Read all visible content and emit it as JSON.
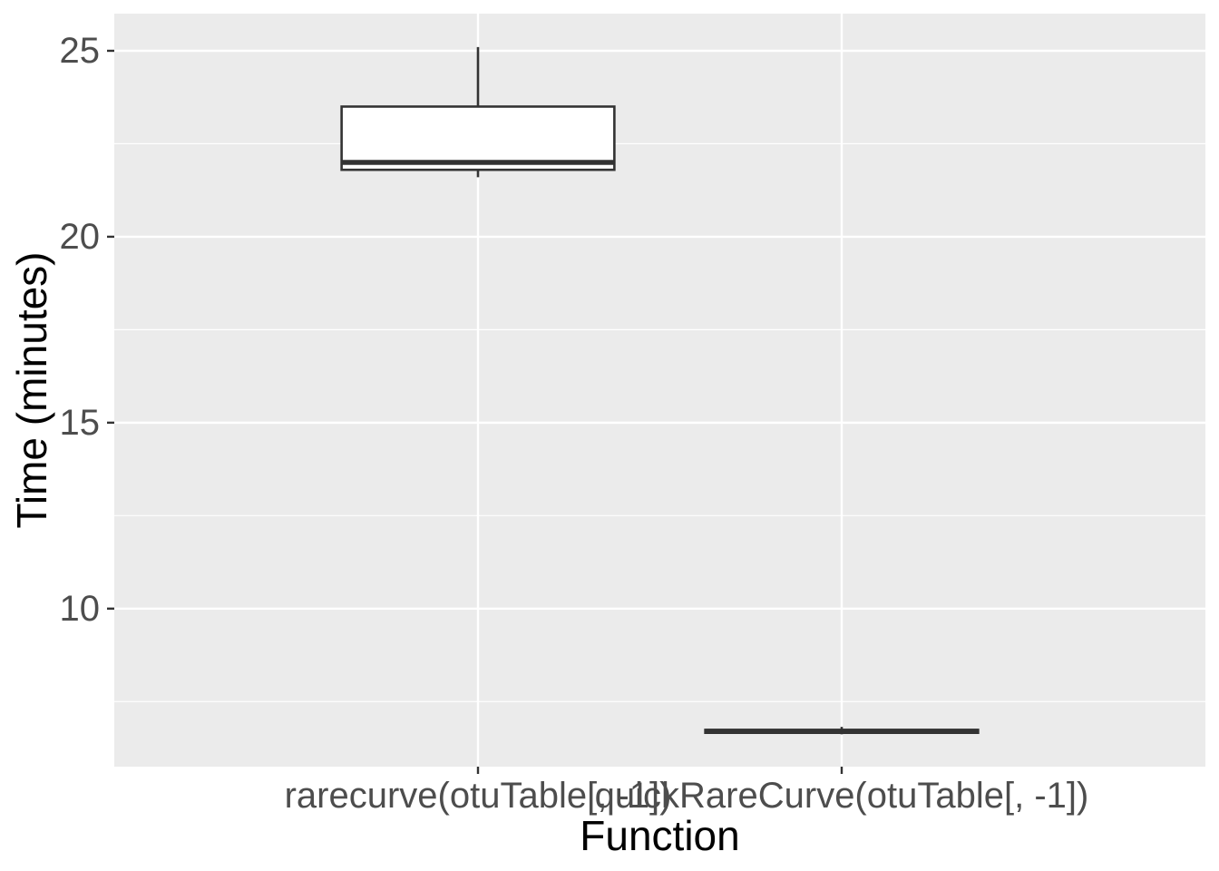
{
  "chart_data": {
    "type": "boxplot",
    "title": "",
    "xlabel": "Function",
    "ylabel": "Time (minutes)",
    "categories": [
      "rarecurve(otuTable[, -1])",
      "quickRareCurve(otuTable[, -1])"
    ],
    "boxes": [
      {
        "category": "rarecurve(otuTable[, -1])",
        "min": 21.6,
        "q1": 21.8,
        "median": 22.0,
        "q3": 23.5,
        "max": 25.1
      },
      {
        "category": "quickRareCurve(otuTable[, -1])",
        "min": 6.62,
        "q1": 6.66,
        "median": 6.7,
        "q3": 6.74,
        "max": 6.82
      }
    ],
    "ylim": [
      5.75,
      26
    ],
    "yticks": [
      10,
      15,
      20,
      25
    ],
    "ytick_labels": [
      "10",
      "15",
      "20",
      "25"
    ],
    "grid": true,
    "legend": "none",
    "colors": {
      "panel_background": "#ebebeb",
      "grid": "#ffffff",
      "box_fill": "#ffffff",
      "box_stroke": "#333333",
      "tick_text": "#4d4d4d",
      "axis_title": "#000000"
    }
  }
}
